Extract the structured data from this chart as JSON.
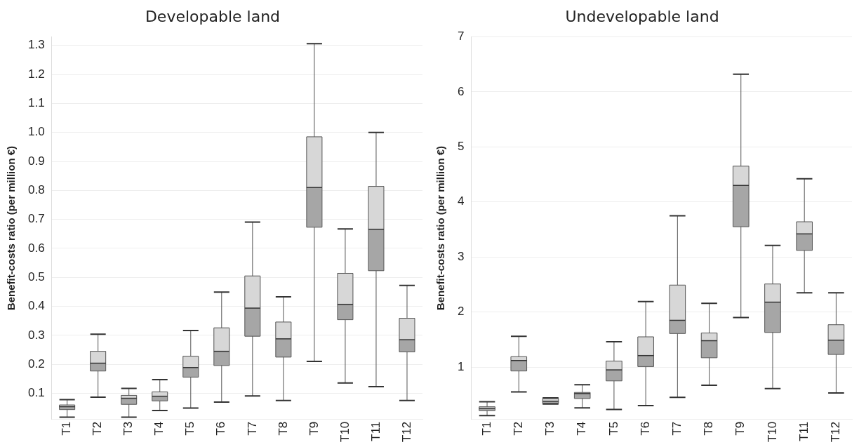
{
  "chart_data": [
    {
      "type": "box",
      "title": "Developable land",
      "ylabel": "Benefit-costs ratio (per million €)",
      "categories": [
        "T1",
        "T2",
        "T3",
        "T4",
        "T5",
        "T6",
        "T7",
        "T8",
        "T9",
        "T10",
        "T11",
        "T12"
      ],
      "ylim": [
        0.01,
        1.33
      ],
      "yticks": [
        0.1,
        0.2,
        0.3,
        0.4,
        0.5,
        0.6,
        0.7,
        0.8,
        0.9,
        {
          "value": 1.0,
          "label": "1.0"
        },
        1.1,
        1.2,
        1.3
      ],
      "grid": "y",
      "legend": false,
      "series": [
        {
          "color": "#a6a6a6",
          "boxes": [
            {
              "low": 0.018,
              "q1": 0.044,
              "median": 0.054,
              "q3": 0.06,
              "high": 0.078
            },
            {
              "low": 0.087,
              "q1": 0.177,
              "median": 0.204,
              "q3": 0.245,
              "high": 0.304
            },
            {
              "low": 0.018,
              "q1": 0.062,
              "median": 0.083,
              "q3": 0.093,
              "high": 0.117
            },
            {
              "low": 0.041,
              "q1": 0.074,
              "median": 0.09,
              "q3": 0.105,
              "high": 0.147
            },
            {
              "low": 0.049,
              "q1": 0.156,
              "median": 0.189,
              "q3": 0.228,
              "high": 0.317
            },
            {
              "low": 0.07,
              "q1": 0.196,
              "median": 0.245,
              "q3": 0.326,
              "high": 0.449
            },
            {
              "low": 0.091,
              "q1": 0.297,
              "median": 0.394,
              "q3": 0.505,
              "high": 0.691
            },
            {
              "low": 0.075,
              "q1": 0.225,
              "median": 0.288,
              "q3": 0.346,
              "high": 0.433
            },
            {
              "low": 0.21,
              "q1": 0.673,
              "median": 0.81,
              "q3": 0.985,
              "high": 1.306
            },
            {
              "low": 0.136,
              "q1": 0.354,
              "median": 0.407,
              "q3": 0.514,
              "high": 0.667
            },
            {
              "low": 0.123,
              "q1": 0.523,
              "median": 0.666,
              "q3": 0.814,
              "high": 1.0
            },
            {
              "low": 0.075,
              "q1": 0.243,
              "median": 0.285,
              "q3": 0.359,
              "high": 0.472
            }
          ]
        }
      ]
    },
    {
      "type": "box",
      "title": "Undevelopable land",
      "ylabel": "Benefit-costs ratio (per million €)",
      "categories": [
        "T1",
        "T2",
        "T3",
        "T4",
        "T5",
        "T6",
        "T7",
        "T8",
        "T9",
        "T10",
        "T11",
        "T12"
      ],
      "ylim": [
        0.05,
        7.0
      ],
      "yticks": [
        1,
        2,
        3,
        4,
        5,
        6,
        7
      ],
      "grid": "y",
      "legend": false,
      "series": [
        {
          "color": "#a6a6a6",
          "boxes": [
            {
              "low": 0.12,
              "q1": 0.21,
              "median": 0.25,
              "q3": 0.28,
              "high": 0.37
            },
            {
              "low": 0.55,
              "q1": 0.93,
              "median": 1.12,
              "q3": 1.19,
              "high": 1.56
            },
            {
              "low": 0.33,
              "q1": 0.34,
              "median": 0.38,
              "q3": 0.43,
              "high": 0.44
            },
            {
              "low": 0.26,
              "q1": 0.43,
              "median": 0.52,
              "q3": 0.54,
              "high": 0.68
            },
            {
              "low": 0.23,
              "q1": 0.75,
              "median": 0.95,
              "q3": 1.11,
              "high": 1.46
            },
            {
              "low": 0.3,
              "q1": 1.01,
              "median": 1.21,
              "q3": 1.55,
              "high": 2.19
            },
            {
              "low": 0.45,
              "q1": 1.61,
              "median": 1.85,
              "q3": 2.49,
              "high": 3.75
            },
            {
              "low": 0.67,
              "q1": 1.17,
              "median": 1.48,
              "q3": 1.62,
              "high": 2.16
            },
            {
              "low": 1.9,
              "q1": 3.55,
              "median": 4.3,
              "q3": 4.65,
              "high": 6.32
            },
            {
              "low": 0.61,
              "q1": 1.63,
              "median": 2.18,
              "q3": 2.51,
              "high": 3.21
            },
            {
              "low": 2.35,
              "q1": 3.12,
              "median": 3.42,
              "q3": 3.64,
              "high": 4.42
            },
            {
              "low": 0.53,
              "q1": 1.23,
              "median": 1.49,
              "q3": 1.77,
              "high": 2.35
            }
          ]
        }
      ]
    }
  ]
}
